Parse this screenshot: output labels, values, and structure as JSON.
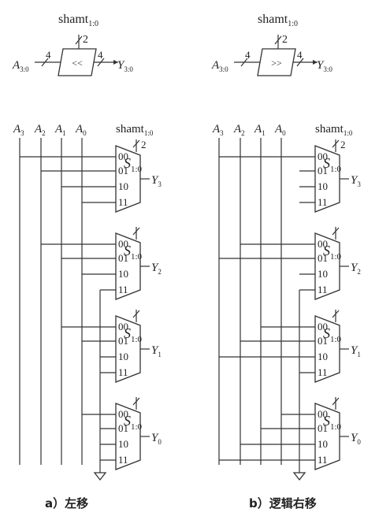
{
  "shifters": [
    {
      "symbol": {
        "shamt": "shamt",
        "shamt_sub": "1:0",
        "width_ctrl": "2",
        "in": "A",
        "in_sub": "3:0",
        "out": "Y",
        "out_sub": "3:0",
        "width_in": "4",
        "width_out": "4",
        "op": "<<"
      },
      "inputs": [
        {
          "name": "A",
          "sub": "3"
        },
        {
          "name": "A",
          "sub": "2"
        },
        {
          "name": "A",
          "sub": "1"
        },
        {
          "name": "A",
          "sub": "0"
        }
      ],
      "shamt": {
        "label": "shamt",
        "sub": "1:0",
        "width": "2"
      },
      "muxes": [
        {
          "sel": "S",
          "sel_sub": "1:0",
          "ports": [
            "00",
            "01",
            "10",
            "11"
          ],
          "out": "Y",
          "out_sub": "3",
          "src": [
            0,
            1,
            2,
            3
          ]
        },
        {
          "sel": "S",
          "sel_sub": "1:0",
          "ports": [
            "00",
            "01",
            "10",
            "11"
          ],
          "out": "Y",
          "out_sub": "2",
          "src": [
            1,
            2,
            3,
            "gnd"
          ]
        },
        {
          "sel": "S",
          "sel_sub": "1:0",
          "ports": [
            "00",
            "01",
            "10",
            "11"
          ],
          "out": "Y",
          "out_sub": "1",
          "src": [
            2,
            3,
            "gnd",
            "gnd"
          ]
        },
        {
          "sel": "S",
          "sel_sub": "1:0",
          "ports": [
            "00",
            "01",
            "10",
            "11"
          ],
          "out": "Y",
          "out_sub": "0",
          "src": [
            3,
            "gnd",
            "gnd",
            "gnd"
          ]
        }
      ],
      "caption": "a）左移"
    },
    {
      "symbol": {
        "shamt": "shamt",
        "shamt_sub": "1:0",
        "width_ctrl": "2",
        "in": "A",
        "in_sub": "3:0",
        "out": "Y",
        "out_sub": "3:0",
        "width_in": "4",
        "width_out": "4",
        "op": ">>"
      },
      "inputs": [
        {
          "name": "A",
          "sub": "3"
        },
        {
          "name": "A",
          "sub": "2"
        },
        {
          "name": "A",
          "sub": "1"
        },
        {
          "name": "A",
          "sub": "0"
        }
      ],
      "shamt": {
        "label": "shamt",
        "sub": "1:0",
        "width": "2"
      },
      "muxes": [
        {
          "sel": "S",
          "sel_sub": "1:0",
          "ports": [
            "00",
            "01",
            "10",
            "11"
          ],
          "out": "Y",
          "out_sub": "3",
          "src": [
            0,
            "gnd",
            "gnd",
            "gnd"
          ]
        },
        {
          "sel": "S",
          "sel_sub": "1:0",
          "ports": [
            "00",
            "01",
            "10",
            "11"
          ],
          "out": "Y",
          "out_sub": "2",
          "src": [
            1,
            0,
            "gnd",
            "gnd"
          ]
        },
        {
          "sel": "S",
          "sel_sub": "1:0",
          "ports": [
            "00",
            "01",
            "10",
            "11"
          ],
          "out": "Y",
          "out_sub": "1",
          "src": [
            2,
            1,
            0,
            "gnd"
          ]
        },
        {
          "sel": "S",
          "sel_sub": "1:0",
          "ports": [
            "00",
            "01",
            "10",
            "11"
          ],
          "out": "Y",
          "out_sub": "0",
          "src": [
            3,
            2,
            1,
            0
          ]
        }
      ],
      "caption": "b）逻辑右移"
    }
  ]
}
